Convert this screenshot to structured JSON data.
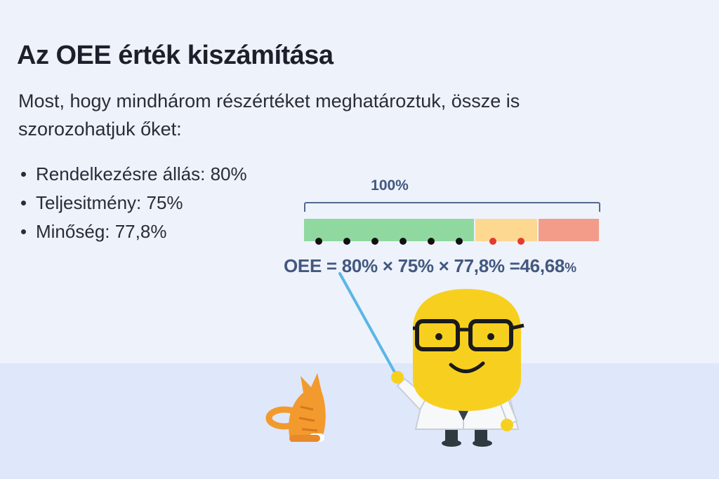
{
  "heading": "Az OEE érték kiszámítása",
  "intro": "Most, hogy mindhárom részértéket meghatároztuk, össze is szorozohatjuk őket:",
  "factors": [
    {
      "text": "Rendelkezésre állás: 80%"
    },
    {
      "text": "Teljesitmény: 75%"
    },
    {
      "text": "Minőség: 77,8%"
    }
  ],
  "bar": {
    "label": "100%",
    "segments": [
      {
        "color": "#8fd9a0"
      },
      {
        "color": "#fdd890"
      },
      {
        "color": "#f49c8a"
      }
    ],
    "black_dots": 6,
    "red_dots": 2
  },
  "formula": {
    "main": "OEE = 80% × 75% × 77,8% =46,68",
    "percent": "%"
  },
  "colors": {
    "text": "#1d1f2b",
    "accent": "#43587f",
    "mascot": "#f7d01f",
    "cat": "#f29a2e"
  }
}
